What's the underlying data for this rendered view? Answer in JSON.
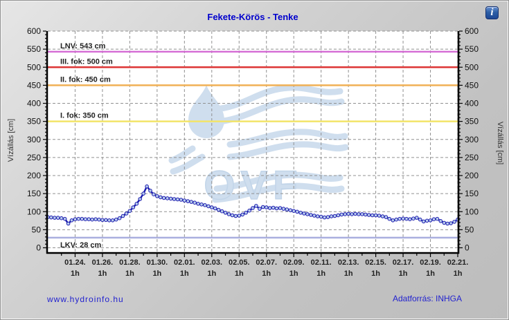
{
  "window": {
    "info_button_label": "i"
  },
  "header": {
    "title": "Fekete-Körös - Tenke"
  },
  "axes": {
    "left_label": "Vízállás [cm]",
    "right_label": "Vízállás [cm]"
  },
  "footer": {
    "website": "www.hydroinfo.hu",
    "source": "Adatforrás: INHGA"
  },
  "chart_data": {
    "type": "line",
    "title": "Fekete-Körös - Tenke",
    "ylabel": "Vízállás [cm]",
    "ylim": [
      -16,
      600
    ],
    "y_ticks": [
      0,
      50,
      100,
      150,
      200,
      250,
      300,
      350,
      400,
      450,
      500,
      550,
      600
    ],
    "y_minor_step": 10,
    "x_range_days": 30,
    "x_start_label": "01.22. 1h",
    "x_tick_positions_days": [
      2,
      4,
      6,
      8,
      10,
      12,
      14,
      16,
      18,
      20,
      22,
      24,
      26,
      28,
      30
    ],
    "x_tick_labels": [
      "01.24.",
      "01.26.",
      "01.28.",
      "01.30.",
      "02.01.",
      "02.03.",
      "02.05.",
      "02.07.",
      "02.09.",
      "02.11.",
      "02.13.",
      "02.15.",
      "02.17.",
      "02.19.",
      "02.21."
    ],
    "x_tick_sublabel": "1h",
    "grid": true,
    "reference_lines": [
      {
        "label": "LNV: 543 cm",
        "value": 543,
        "color": "#d46ad4",
        "label_position": "above"
      },
      {
        "label": "III. fok: 500 cm",
        "value": 500,
        "color": "#dd3535",
        "label_position": "above"
      },
      {
        "label": "II. fok: 450 cm",
        "value": 450,
        "color": "#f0b054",
        "label_position": "above"
      },
      {
        "label": "I. fok: 350 cm",
        "value": 350,
        "color": "#f2e468",
        "label_position": "above"
      },
      {
        "label": "LKV: 28 cm",
        "value": 28,
        "color": "#a9aede",
        "label_position": "below"
      }
    ],
    "series": [
      {
        "name": "Vízállás",
        "color": "#1a1aae",
        "marker_fill": "#b9cdec",
        "start": "01.22. 1h",
        "interval_hours": 6,
        "values": [
          85,
          84,
          83,
          83,
          82,
          80,
          67,
          76,
          79,
          80,
          80,
          79,
          79,
          78,
          79,
          78,
          77,
          77,
          76,
          76,
          78,
          82,
          88,
          95,
          102,
          112,
          122,
          135,
          150,
          170,
          158,
          148,
          143,
          140,
          138,
          137,
          136,
          135,
          134,
          133,
          131,
          129,
          127,
          125,
          122,
          120,
          118,
          115,
          112,
          109,
          105,
          101,
          97,
          93,
          90,
          88,
          89,
          92,
          97,
          103,
          110,
          116,
          108,
          113,
          112,
          110,
          111,
          109,
          110,
          108,
          106,
          104,
          102,
          100,
          97,
          95,
          93,
          91,
          89,
          87,
          86,
          84,
          85,
          87,
          88,
          90,
          92,
          93,
          94,
          93,
          94,
          93,
          93,
          92,
          91,
          90,
          90,
          89,
          87,
          85,
          80,
          76,
          78,
          80,
          81,
          80,
          79,
          81,
          83,
          78,
          73,
          75,
          76,
          79,
          80,
          74,
          69,
          67,
          68,
          72,
          78
        ]
      }
    ],
    "watermark_text": "OVF",
    "colors": {
      "plot_bg": "#ffffff",
      "grid": "#909090",
      "axis": "#000000",
      "title": "#0000cd",
      "watermark": "#cfdeee",
      "watermark_outline": "#c2d5e9"
    }
  }
}
